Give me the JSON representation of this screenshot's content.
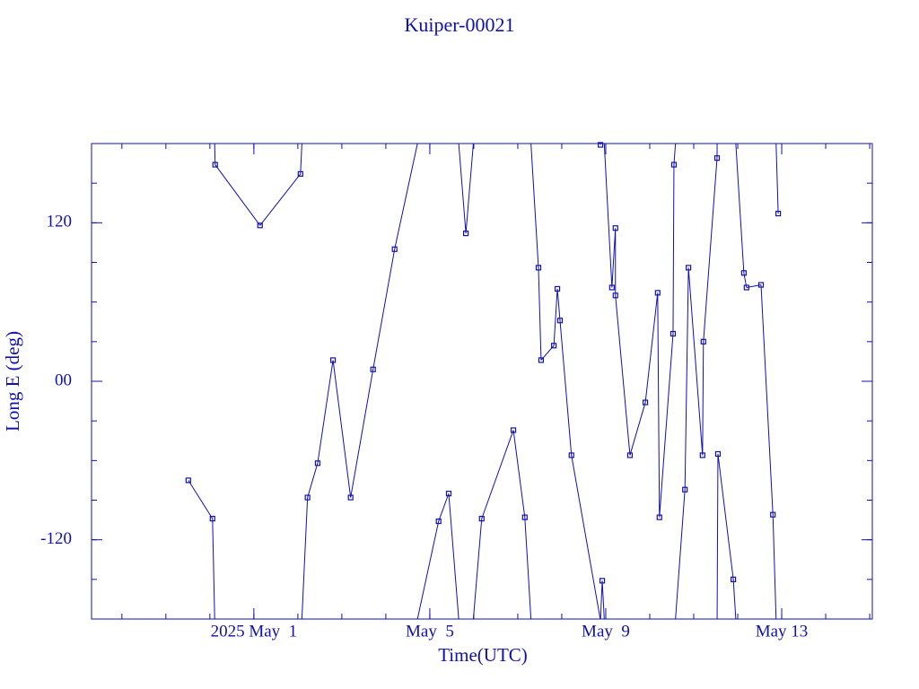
{
  "chart_data": {
    "type": "scatter",
    "title": "Kuiper-00021",
    "x_label": "Time(UTC)",
    "y_label": "Long E (deg)",
    "color": "#1010b0",
    "xlim": [
      -2.69,
      15.06
    ],
    "ylim": [
      -180,
      180
    ],
    "xticks": [
      {
        "value": 1,
        "label": "2025 May  1"
      },
      {
        "value": 5,
        "label": "May  5"
      },
      {
        "value": 9,
        "label": "May  9"
      },
      {
        "value": 13,
        "label": "May 13"
      }
    ],
    "yticks": [
      -120,
      {
        "value": 0,
        "label": "00"
      },
      120
    ],
    "x": [
      -0.49,
      0.06,
      0.12,
      1.14,
      2.06,
      2.22,
      2.45,
      2.8,
      3.2,
      3.71,
      4.2,
      5.2,
      5.43,
      5.82,
      6.18,
      6.9,
      7.16,
      7.47,
      7.53,
      7.82,
      7.9,
      7.96,
      8.22,
      8.88,
      8.92,
      9.14,
      9.22,
      9.22,
      9.55,
      9.9,
      10.18,
      10.22,
      10.53,
      10.55,
      10.8,
      10.88,
      11.2,
      11.22,
      11.53,
      11.55,
      11.9,
      12.14,
      12.2,
      12.53,
      12.8,
      12.92
    ],
    "series": [
      {
        "name": "Long E",
        "color": "#1010b0",
        "values": [
          -75,
          -104,
          164,
          118,
          157,
          -88,
          -62,
          16,
          -88,
          9,
          100,
          -106,
          -85,
          112,
          -104,
          -37,
          -103,
          86,
          16,
          27,
          70,
          46,
          -56,
          179,
          -151,
          71,
          116,
          65,
          -56,
          -16,
          67,
          -103,
          36,
          164,
          -82,
          86,
          -56,
          30,
          169,
          -55,
          -150,
          82,
          71,
          73,
          -101,
          127
        ]
      }
    ]
  }
}
